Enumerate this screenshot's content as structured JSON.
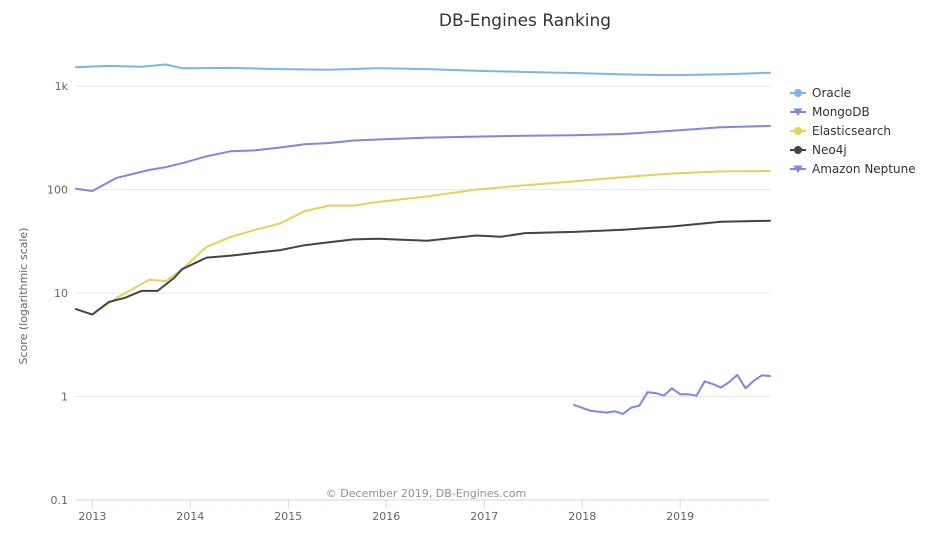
{
  "chart_data": {
    "type": "line",
    "title": "DB-Engines Ranking",
    "ylabel": "Score (logarithmic scale)",
    "xlabel": "",
    "y_scale": "log",
    "ylim": [
      0.1,
      2000
    ],
    "y_ticks": [
      0.1,
      1,
      10,
      100,
      1000
    ],
    "y_tick_labels": [
      "0.1",
      "1",
      "10",
      "100",
      "1k"
    ],
    "xlim": [
      "2012-11",
      "2019-12"
    ],
    "x_tick_labels": [
      "2013",
      "2014",
      "2015",
      "2016",
      "2017",
      "2018",
      "2019"
    ],
    "grid": true,
    "legend_position": "right",
    "credit": "© December 2019, DB-Engines.com",
    "series": [
      {
        "name": "Oracle",
        "color": "#7cb5ec",
        "marker": "circle",
        "x": [
          "2012-11",
          "2013-03",
          "2013-07",
          "2013-10",
          "2013-12",
          "2014-06",
          "2014-12",
          "2015-06",
          "2015-12",
          "2016-06",
          "2016-12",
          "2017-06",
          "2017-12",
          "2018-06",
          "2018-12",
          "2019-06",
          "2019-12"
        ],
        "y": [
          1520,
          1570,
          1540,
          1620,
          1490,
          1500,
          1460,
          1440,
          1490,
          1460,
          1410,
          1370,
          1340,
          1300,
          1280,
          1300,
          1345
        ]
      },
      {
        "name": "MongoDB",
        "color": "#8085e9",
        "marker": "triangle-down",
        "x": [
          "2012-11",
          "2013-01",
          "2013-04",
          "2013-08",
          "2013-10",
          "2013-12",
          "2014-03",
          "2014-06",
          "2014-09",
          "2014-12",
          "2015-03",
          "2015-06",
          "2015-09",
          "2015-12",
          "2016-06",
          "2016-12",
          "2017-06",
          "2017-12",
          "2018-06",
          "2018-12",
          "2019-06",
          "2019-12"
        ],
        "y": [
          102,
          97,
          130,
          155,
          165,
          180,
          210,
          235,
          240,
          255,
          275,
          282,
          298,
          305,
          318,
          325,
          332,
          335,
          345,
          370,
          400,
          413
        ]
      },
      {
        "name": "Elasticsearch",
        "color": "#e4d354",
        "marker": "circle",
        "x": [
          "2013-02",
          "2013-04",
          "2013-06",
          "2013-08",
          "2013-10",
          "2013-12",
          "2014-03",
          "2014-06",
          "2014-09",
          "2014-12",
          "2015-03",
          "2015-06",
          "2015-09",
          "2015-12",
          "2016-06",
          "2016-12",
          "2017-06",
          "2017-12",
          "2018-06",
          "2018-12",
          "2019-06",
          "2019-12"
        ],
        "y": [
          7,
          9,
          11,
          13.5,
          13,
          17,
          28,
          35,
          41,
          47,
          62,
          70,
          70,
          76,
          86,
          100,
          110,
          120,
          132,
          143,
          150,
          151
        ]
      },
      {
        "name": "Neo4j",
        "color": "#434348",
        "marker": "circle",
        "x": [
          "2012-11",
          "2013-01",
          "2013-03",
          "2013-05",
          "2013-07",
          "2013-09",
          "2013-11",
          "2013-12",
          "2014-03",
          "2014-06",
          "2014-09",
          "2014-12",
          "2015-03",
          "2015-06",
          "2015-09",
          "2015-12",
          "2016-06",
          "2016-12",
          "2017-03",
          "2017-06",
          "2017-12",
          "2018-06",
          "2018-12",
          "2019-06",
          "2019-12"
        ],
        "y": [
          7,
          6.2,
          8.2,
          9,
          10.5,
          10.5,
          14,
          17,
          22,
          23,
          24.5,
          26,
          29,
          31,
          33,
          33.5,
          32,
          36,
          35,
          38,
          39,
          41,
          44,
          49,
          50
        ]
      },
      {
        "name": "Amazon Neptune",
        "color": "#8085e9",
        "marker": "triangle-down",
        "x": [
          "2017-12",
          "2018-02",
          "2018-04",
          "2018-05",
          "2018-06",
          "2018-07",
          "2018-08",
          "2018-09",
          "2018-10",
          "2018-11",
          "2018-12",
          "2019-01",
          "2019-02",
          "2019-03",
          "2019-04",
          "2019-05",
          "2019-06",
          "2019-07",
          "2019-08",
          "2019-09",
          "2019-10",
          "2019-11",
          "2019-12"
        ],
        "y": [
          0.83,
          0.73,
          0.7,
          0.72,
          0.68,
          0.78,
          0.82,
          1.1,
          1.08,
          1.02,
          1.2,
          1.05,
          1.05,
          1.02,
          1.4,
          1.32,
          1.22,
          1.38,
          1.62,
          1.2,
          1.42,
          1.6,
          1.58
        ]
      }
    ]
  }
}
